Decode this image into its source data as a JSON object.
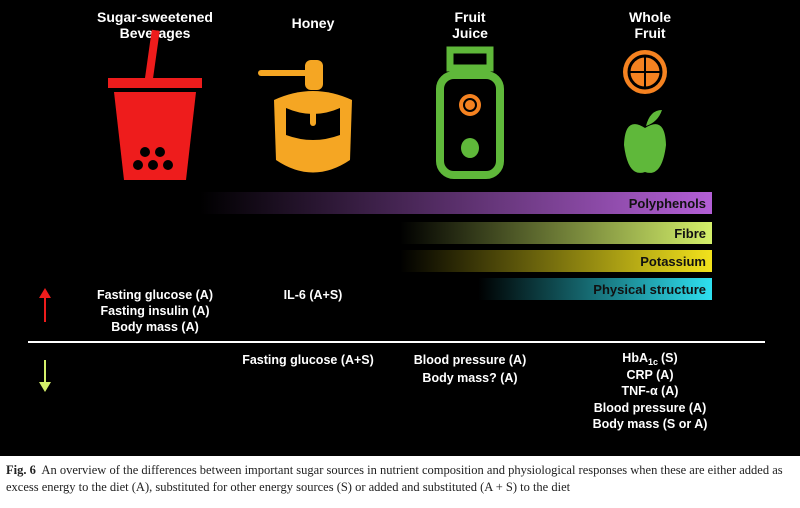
{
  "figure": {
    "columns": [
      "Sugar-sweetened Beverages",
      "Honey",
      "Fruit Juice",
      "Whole Fruit"
    ],
    "bars": [
      "Polyphenols",
      "Fibre",
      "Potassium",
      "Physical structure"
    ],
    "increase": {
      "beverages": [
        "Fasting glucose (A)",
        "Fasting insulin (A)",
        "Body mass (A)"
      ],
      "honey": [
        "IL-6 (A+S)"
      ]
    },
    "decrease": {
      "honey": [
        "Fasting glucose (A+S)"
      ],
      "juice": [
        "Blood pressure (A)",
        "Body mass? (A)"
      ],
      "fruit_hba": {
        "main": "HbA",
        "sub": "1c",
        "rest": "(S)"
      },
      "fruit": [
        "CRP (A)",
        "TNF-α (A)",
        "Blood pressure (A)",
        "Body mass (S or A)"
      ]
    }
  },
  "caption": {
    "label": "Fig. 6",
    "text": "An overview of the differences between important sugar sources in nutrient composition and physiological responses when these are either added as excess energy to the diet (A), substituted for other energy sources (S) or added and substituted (A + S) to the diet"
  }
}
